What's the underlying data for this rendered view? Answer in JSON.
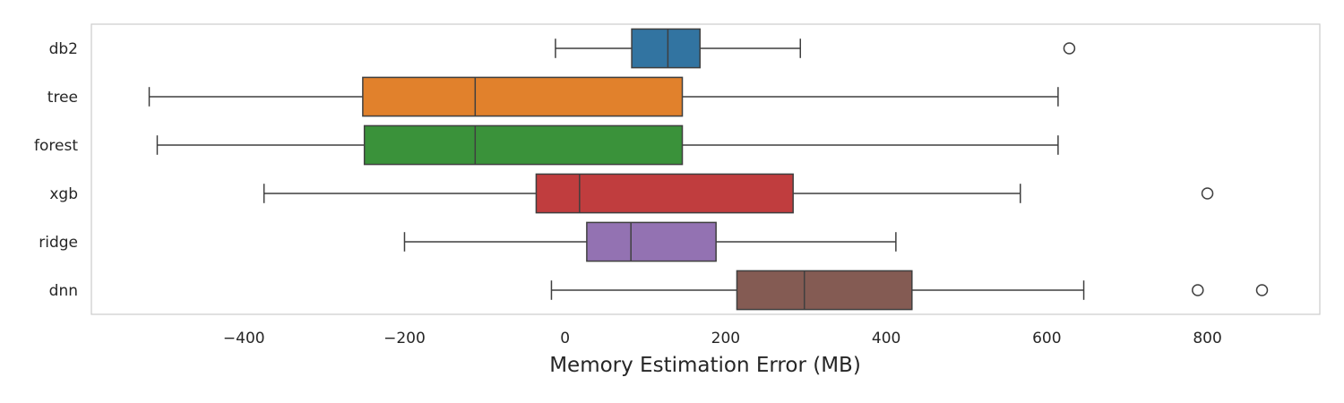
{
  "chart_data": {
    "type": "boxplot",
    "orientation": "horizontal",
    "title": "",
    "xlabel": "Memory Estimation Error (MB)",
    "ylabel": "",
    "xlim": [
      -590,
      940
    ],
    "xticks": [
      -400,
      -200,
      0,
      200,
      400,
      600,
      800
    ],
    "xtick_labels": [
      "−400",
      "−200",
      "0",
      "200",
      "400",
      "600",
      "800"
    ],
    "grid": false,
    "categories": [
      "db2",
      "tree",
      "forest",
      "xgb",
      "ridge",
      "dnn"
    ],
    "series": [
      {
        "category": "db2",
        "whisker_low": -12,
        "q1": 83,
        "median": 128,
        "q3": 168,
        "whisker_high": 293,
        "outliers": [
          628
        ],
        "color": "#3274a1"
      },
      {
        "category": "tree",
        "whisker_low": -518,
        "q1": -252,
        "median": -112,
        "q3": 146,
        "whisker_high": 614,
        "outliers": [],
        "color": "#e1812c"
      },
      {
        "category": "forest",
        "whisker_low": -508,
        "q1": -250,
        "median": -112,
        "q3": 146,
        "whisker_high": 614,
        "outliers": [],
        "color": "#3a923a"
      },
      {
        "category": "xgb",
        "whisker_low": -375,
        "q1": -36,
        "median": 18,
        "q3": 284,
        "whisker_high": 567,
        "outliers": [
          800
        ],
        "color": "#c03d3e"
      },
      {
        "category": "ridge",
        "whisker_low": -200,
        "q1": 27,
        "median": 82,
        "q3": 188,
        "whisker_high": 412,
        "outliers": [],
        "color": "#9372b2"
      },
      {
        "category": "dnn",
        "whisker_low": -17,
        "q1": 214,
        "median": 298,
        "q3": 432,
        "whisker_high": 646,
        "outliers": [
          788,
          868
        ],
        "color": "#845b53"
      }
    ]
  }
}
